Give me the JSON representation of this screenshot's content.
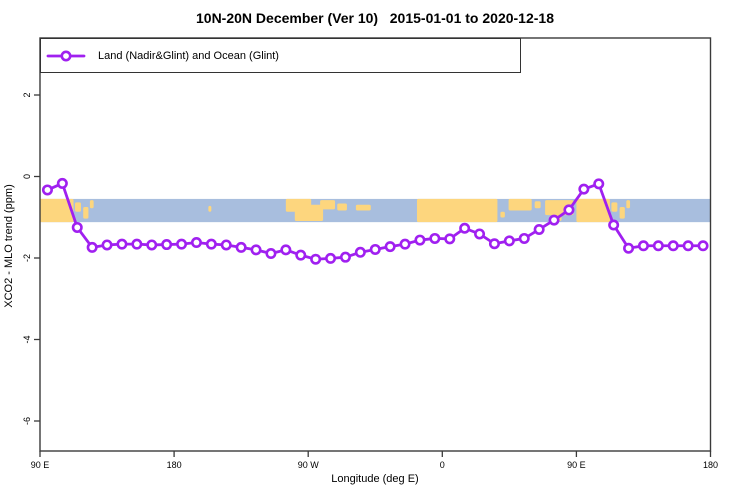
{
  "chart": {
    "title": "10N-20N December (Ver 10)   2015-01-01 to 2020-12-18",
    "xlabel": "Longitude (deg E)",
    "ylabel": "XCO2 - MLO trend (ppm)",
    "legend": [
      "Land (Nadir&Glint) and Ocean (Glint)"
    ]
  },
  "chart_data": {
    "type": "line",
    "title": "10N-20N December (Ver 10)   2015-01-01 to 2020-12-18",
    "xlabel": "Longitude (deg E)",
    "ylabel": "XCO2 - MLO trend (ppm)",
    "legend_position": "top-left",
    "grid": false,
    "xlim": [
      90,
      540
    ],
    "ylim": [
      -6.74,
      3.4
    ],
    "x_note": "continuous longitude deg E; 450 and 540 are the wrapped 90E and 180",
    "x_ticks": [
      {
        "x": 90,
        "label": "90 E"
      },
      {
        "x": 180,
        "label": "180"
      },
      {
        "x": 270,
        "label": "90 W"
      },
      {
        "x": 360,
        "label": "0"
      },
      {
        "x": 450,
        "label": "90 E"
      },
      {
        "x": 540,
        "label": "180"
      }
    ],
    "y_ticks": [
      {
        "v": 2,
        "label": "2"
      },
      {
        "v": 0,
        "label": "0"
      },
      {
        "v": -2,
        "label": "-2"
      },
      {
        "v": -4,
        "label": "-4"
      },
      {
        "v": -6,
        "label": "-6"
      }
    ],
    "x": [
      95,
      105,
      115,
      125,
      135,
      145,
      155,
      165,
      175,
      185,
      195,
      205,
      215,
      225,
      235,
      245,
      255,
      265,
      275,
      285,
      295,
      305,
      315,
      325,
      335,
      345,
      355,
      365,
      375,
      385,
      395,
      405,
      415,
      425,
      435,
      445,
      455,
      465,
      475,
      485,
      495,
      505,
      515,
      525,
      535
    ],
    "series": [
      {
        "name": "Land (Nadir&Glint) and Ocean (Glint)",
        "values": [
          -0.33,
          -0.17,
          -1.25,
          -1.74,
          -1.68,
          -1.66,
          -1.66,
          -1.68,
          -1.67,
          -1.66,
          -1.62,
          -1.66,
          -1.68,
          -1.74,
          -1.8,
          -1.89,
          -1.8,
          -1.93,
          -2.03,
          -2.01,
          -1.98,
          -1.86,
          -1.79,
          -1.72,
          -1.66,
          -1.56,
          -1.52,
          -1.53,
          -1.27,
          -1.41,
          -1.65,
          -1.58,
          -1.52,
          -1.3,
          -1.07,
          -0.82,
          -0.31,
          -0.18,
          -1.19,
          -1.76,
          -1.7,
          -1.7,
          -1.7,
          -1.7,
          -1.7
        ]
      }
    ],
    "map_band": {
      "description": "10N-20N latitude world-map strip (ocean blue, land tan)",
      "y_range_ppm": [
        -0.55,
        -1.12
      ],
      "ocean_color": "#A8BEDE",
      "land_color": "#FDD67E",
      "land_segments": [
        {
          "x1": 90,
          "x2": 112.5,
          "t": 0,
          "b": 1
        },
        {
          "x1": 113.5,
          "x2": 117.5,
          "t": 0.15,
          "b": 0.55
        },
        {
          "x1": 119,
          "x2": 122.5,
          "t": 0.35,
          "b": 0.85
        },
        {
          "x1": 123.5,
          "x2": 126,
          "t": 0.05,
          "b": 0.4
        },
        {
          "x1": 203,
          "x2": 205,
          "t": 0.3,
          "b": 0.55
        },
        {
          "x1": 255,
          "x2": 272,
          "t": 0,
          "b": 0.55
        },
        {
          "x1": 261,
          "x2": 280,
          "t": 0.25,
          "b": 0.95
        },
        {
          "x1": 278,
          "x2": 288,
          "t": 0.05,
          "b": 0.45
        },
        {
          "x1": 289.5,
          "x2": 296,
          "t": 0.2,
          "b": 0.5
        },
        {
          "x1": 302,
          "x2": 312,
          "t": 0.25,
          "b": 0.5
        },
        {
          "x1": 343,
          "x2": 397,
          "t": 0,
          "b": 1
        },
        {
          "x1": 399,
          "x2": 402,
          "t": 0.55,
          "b": 0.8
        },
        {
          "x1": 404.5,
          "x2": 420,
          "t": 0,
          "b": 0.5
        },
        {
          "x1": 422,
          "x2": 426,
          "t": 0.1,
          "b": 0.4
        },
        {
          "x1": 429,
          "x2": 448,
          "t": 0.05,
          "b": 0.7
        },
        {
          "x1": 433,
          "x2": 440,
          "t": 0.5,
          "b": 0.95
        },
        {
          "x1": 450,
          "x2": 472.5,
          "t": 0,
          "b": 1
        },
        {
          "x1": 473.5,
          "x2": 477.5,
          "t": 0.15,
          "b": 0.55
        },
        {
          "x1": 479,
          "x2": 482.5,
          "t": 0.35,
          "b": 0.85
        },
        {
          "x1": 483.5,
          "x2": 486,
          "t": 0.05,
          "b": 0.4
        }
      ]
    },
    "colors": {
      "line": "#A020F0",
      "marker_fill": "#FFFFFF",
      "axis": "#3a3a3a",
      "text": "#000000"
    }
  }
}
